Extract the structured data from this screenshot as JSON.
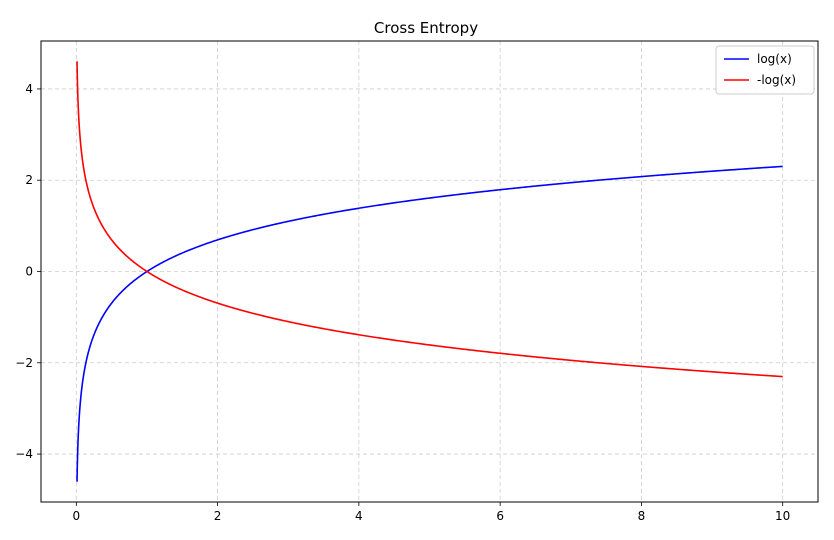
{
  "chart_data": {
    "type": "line",
    "title": "Cross Entropy",
    "xlabel": "",
    "ylabel": "",
    "xlim": [
      -0.5,
      10.5
    ],
    "ylim": [
      -5.05,
      5.05
    ],
    "x_ticks": [
      0,
      2,
      4,
      6,
      8,
      10
    ],
    "x_tick_labels": [
      "0",
      "2",
      "4",
      "6",
      "8",
      "10"
    ],
    "y_ticks": [
      -4,
      -2,
      0,
      2,
      4
    ],
    "y_tick_labels": [
      "−4",
      "−2",
      "0",
      "2",
      "4"
    ],
    "grid": true,
    "legend_position": "top-right",
    "x_range": [
      0.01,
      10
    ],
    "series": [
      {
        "name": "log(x)",
        "color": "#0000ff",
        "function": "log",
        "points": [
          [
            0.01,
            -4.61
          ],
          [
            0.1,
            -2.3
          ],
          [
            0.5,
            -0.69
          ],
          [
            1,
            0
          ],
          [
            2,
            0.69
          ],
          [
            4,
            1.39
          ],
          [
            6,
            1.79
          ],
          [
            8,
            2.08
          ],
          [
            10,
            2.3
          ]
        ]
      },
      {
        "name": "-log(x)",
        "color": "#ff0000",
        "function": "neglog",
        "points": [
          [
            0.01,
            4.61
          ],
          [
            0.1,
            2.3
          ],
          [
            0.5,
            0.69
          ],
          [
            1,
            0
          ],
          [
            2,
            -0.69
          ],
          [
            4,
            -1.39
          ],
          [
            6,
            -1.79
          ],
          [
            8,
            -2.08
          ],
          [
            10,
            -2.3
          ]
        ]
      }
    ]
  }
}
